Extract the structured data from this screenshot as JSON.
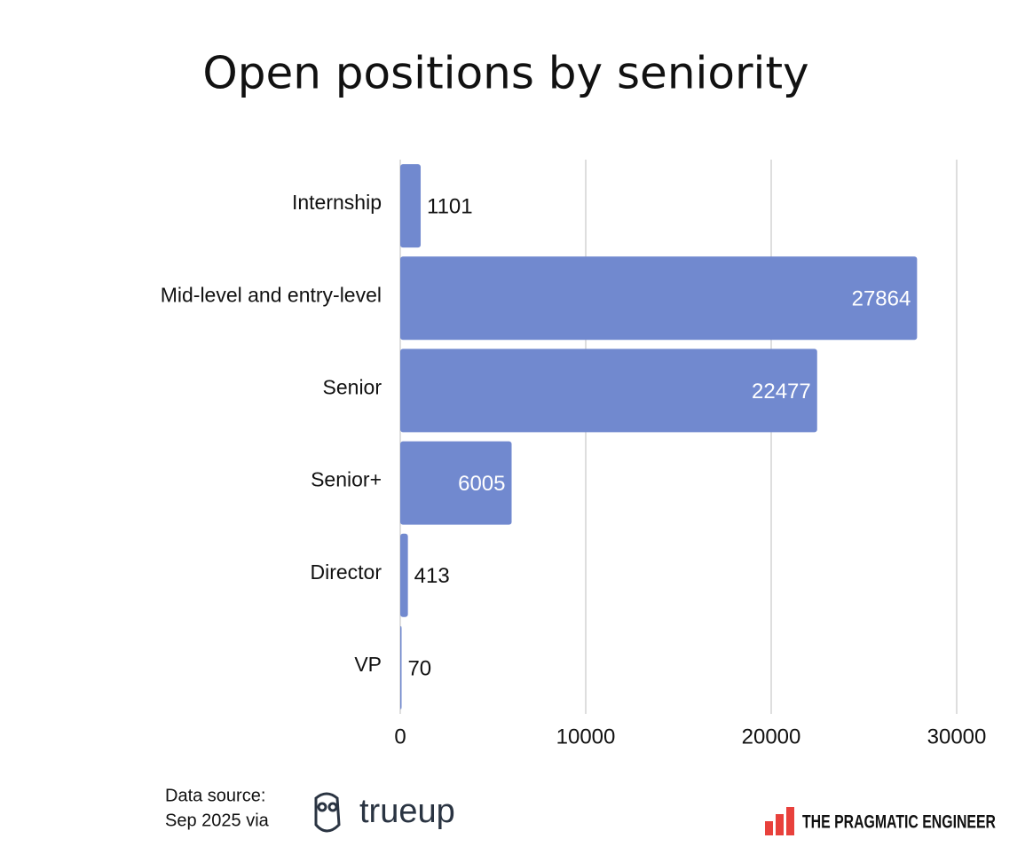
{
  "chart_data": {
    "type": "barh",
    "title": "Open positions by seniority",
    "categories": [
      "Internship",
      "Mid-level and entry-level",
      "Senior",
      "Senior+",
      "Director",
      "VP"
    ],
    "values": [
      1101,
      27864,
      22477,
      6005,
      413,
      70
    ],
    "color": "#7189cf",
    "xlim": [
      0,
      30000
    ],
    "xticks": [
      0,
      10000,
      20000,
      30000
    ],
    "grid": true,
    "source": [
      "Data source:",
      "Sep 2025 via"
    ],
    "source_logo": "trueup",
    "brand": "THE PRAGMATIC ENGINEER"
  }
}
